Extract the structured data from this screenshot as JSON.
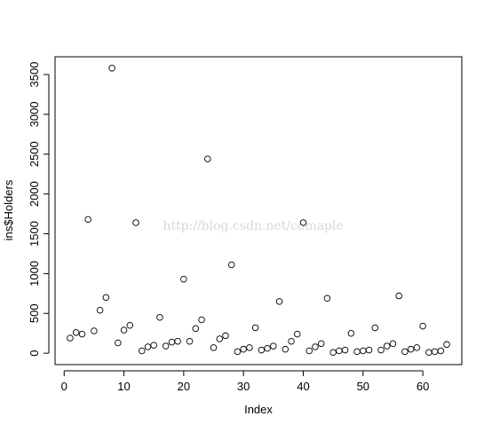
{
  "chart_data": {
    "type": "scatter",
    "x_label": "Index",
    "y_label": "ins$Holders",
    "watermark": "http://blog.csdn.net/comaple",
    "x": [
      1,
      2,
      3,
      4,
      5,
      6,
      7,
      8,
      9,
      10,
      11,
      12,
      13,
      14,
      15,
      16,
      17,
      18,
      19,
      20,
      21,
      22,
      23,
      24,
      25,
      26,
      27,
      28,
      29,
      30,
      31,
      32,
      33,
      34,
      35,
      36,
      37,
      38,
      39,
      40,
      41,
      42,
      43,
      44,
      45,
      46,
      47,
      48,
      49,
      50,
      51,
      52,
      53,
      54,
      55,
      56,
      57,
      58,
      59,
      60,
      61,
      62,
      63,
      64
    ],
    "values": [
      190,
      260,
      240,
      1680,
      280,
      540,
      700,
      3580,
      130,
      290,
      350,
      1640,
      30,
      80,
      100,
      450,
      90,
      140,
      150,
      930,
      150,
      310,
      420,
      2440,
      70,
      180,
      220,
      1110,
      20,
      50,
      70,
      320,
      40,
      60,
      90,
      650,
      50,
      150,
      240,
      1640,
      30,
      80,
      120,
      690,
      10,
      30,
      40,
      250,
      20,
      30,
      40,
      320,
      40,
      90,
      120,
      720,
      20,
      50,
      70,
      340,
      10,
      20,
      30,
      110
    ],
    "color": "#000000",
    "xlim": [
      -1.52,
      66.52
    ],
    "ylim": [
      -143,
      3723
    ],
    "xticks": [
      0,
      10,
      20,
      30,
      40,
      50,
      60
    ],
    "yticks": [
      0,
      500,
      1000,
      1500,
      2000,
      2500,
      3000,
      3500
    ]
  }
}
